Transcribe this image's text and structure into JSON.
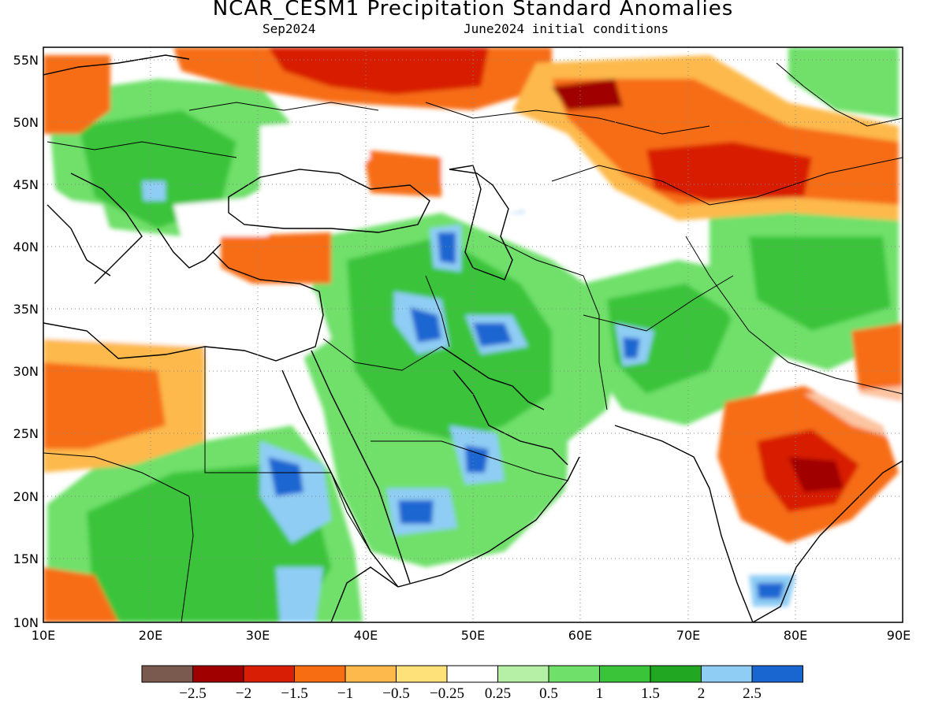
{
  "title": "NCAR_CESM1 Precipitation Standard Anomalies",
  "valid_month": "Sep2024",
  "init": "June2024 initial conditions",
  "lat_labels": [
    "55N",
    "50N",
    "45N",
    "40N",
    "35N",
    "30N",
    "25N",
    "20N",
    "15N",
    "10N"
  ],
  "lon_labels": [
    "10E",
    "20E",
    "30E",
    "40E",
    "50E",
    "60E",
    "70E",
    "80E",
    "90E"
  ],
  "colorbar": {
    "colors": [
      "#7a5a4e",
      "#a00000",
      "#d81e05",
      "#f76d12",
      "#fdb94b",
      "#ffe17a",
      "#ffffff",
      "#b6f0a6",
      "#6fe06a",
      "#3ac43a",
      "#22a722",
      "#8fcdf5",
      "#1a66d1"
    ],
    "labels": [
      "−2.5",
      "−2",
      "−1.5",
      "−1",
      "−0.5",
      "−0.25",
      "0.25",
      "0.5",
      "1",
      "1.5",
      "2",
      "2.5"
    ]
  }
}
